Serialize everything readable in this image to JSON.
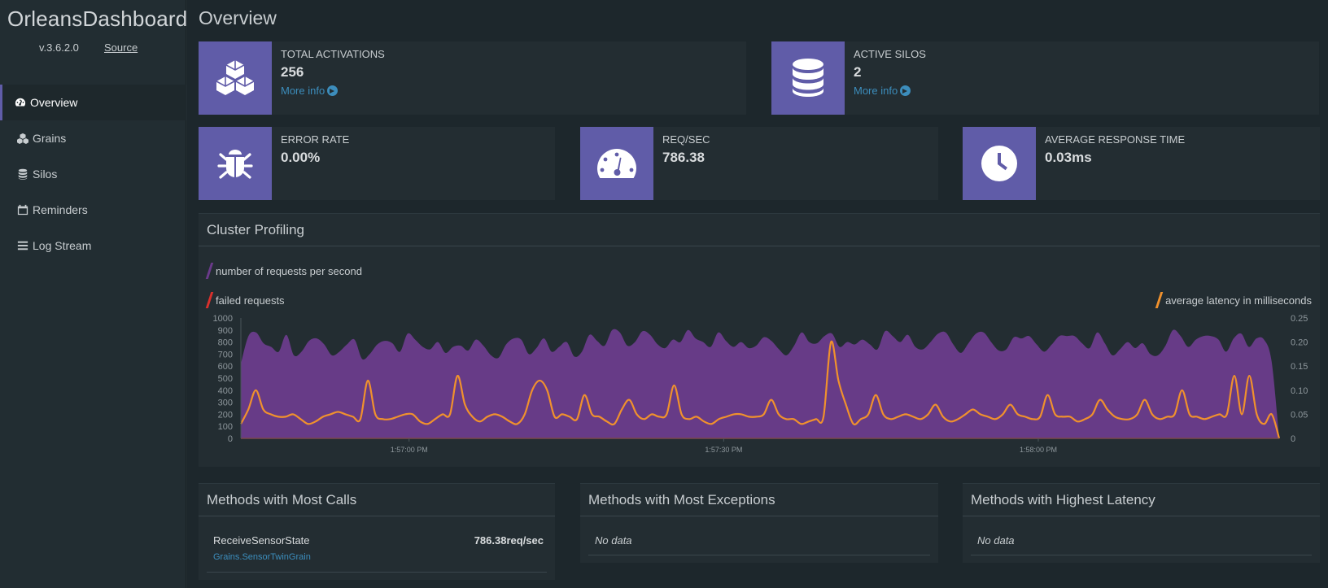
{
  "sidebar": {
    "brand": "OrleansDashboard",
    "version": "v.3.6.2.0",
    "source_link": "Source",
    "items": [
      {
        "label": "Overview",
        "icon": "tachometer-icon",
        "active": true
      },
      {
        "label": "Grains",
        "icon": "cubes-icon",
        "active": false
      },
      {
        "label": "Silos",
        "icon": "database-icon",
        "active": false
      },
      {
        "label": "Reminders",
        "icon": "calendar-icon",
        "active": false
      },
      {
        "label": "Log Stream",
        "icon": "bars-icon",
        "active": false
      }
    ]
  },
  "main": {
    "title": "Overview",
    "stats": {
      "total_activations": {
        "label": "TOTAL ACTIVATIONS",
        "value": "256",
        "more": "More info",
        "icon": "cubes-icon"
      },
      "active_silos": {
        "label": "ACTIVE SILOS",
        "value": "2",
        "more": "More info",
        "icon": "database-icon"
      },
      "error_rate": {
        "label": "ERROR RATE",
        "value": "0.00%",
        "icon": "bug-icon"
      },
      "req_sec": {
        "label": "REQ/SEC",
        "value": "786.38",
        "icon": "tachometer-icon"
      },
      "avg_response": {
        "label": "AVERAGE RESPONSE TIME",
        "value": "0.03ms",
        "icon": "clock-icon"
      }
    },
    "cluster_profiling": {
      "title": "Cluster Profiling",
      "legend_requests": "number of requests per second",
      "legend_failed": "failed requests",
      "legend_latency": "average latency in milliseconds"
    },
    "methods_calls": {
      "title": "Methods with Most Calls",
      "rows": [
        {
          "method": "ReceiveSensorState",
          "grain": "Grains.SensorTwinGrain",
          "value": "786.38req/sec"
        }
      ]
    },
    "methods_exceptions": {
      "title": "Methods with Most Exceptions",
      "empty": "No data"
    },
    "methods_latency": {
      "title": "Methods with Highest Latency",
      "empty": "No data"
    }
  },
  "colors": {
    "accent": "#605ca8",
    "requests": "#6a3a8a",
    "failed": "#d9302c",
    "latency": "#f0912d",
    "link": "#3c8dbc"
  },
  "chart_data": {
    "type": "area",
    "title": "",
    "x_tick_labels": [
      "1:57:00 PM",
      "1:57:30 PM",
      "1:58:00 PM"
    ],
    "ylim": [
      0,
      1000
    ],
    "y_ticks": [
      0,
      100,
      200,
      300,
      400,
      500,
      600,
      700,
      800,
      900,
      1000
    ],
    "y2lim": [
      0,
      0.25
    ],
    "y2_ticks": [
      "0",
      "0.05",
      "0.10",
      "0.15",
      "0.20",
      "0.25"
    ],
    "grid": false,
    "legend_placement": "top-left and top-right",
    "series": [
      {
        "name": "number of requests per second",
        "axis": "left",
        "values": [
          620,
          850,
          880,
          790,
          760,
          720,
          860,
          690,
          720,
          810,
          830,
          780,
          690,
          720,
          780,
          820,
          660,
          700,
          780,
          810,
          790,
          720,
          870,
          820,
          760,
          740,
          800,
          710,
          760,
          770,
          730,
          820,
          770,
          690,
          670,
          780,
          830,
          820,
          700,
          750,
          830,
          720,
          760,
          800,
          680,
          720,
          860,
          810,
          770,
          900,
          880,
          770,
          800,
          890,
          860,
          780,
          750,
          820,
          800,
          900,
          830,
          800,
          760,
          880,
          810,
          760,
          800,
          750,
          770,
          840,
          810,
          740,
          690,
          770,
          880,
          800,
          790,
          850,
          870,
          760,
          800,
          780,
          820,
          780,
          740,
          890,
          850,
          800,
          860,
          760,
          740,
          800,
          870,
          880,
          780,
          710,
          790,
          870,
          880,
          800,
          730,
          740,
          840,
          830,
          850,
          780,
          720,
          780,
          850,
          850,
          850,
          790,
          750,
          880,
          790,
          690,
          740,
          800,
          750,
          790,
          700,
          690,
          770,
          900,
          850,
          760,
          820,
          850,
          850,
          820,
          720,
          830,
          870,
          760,
          830,
          820,
          640,
          0
        ]
      },
      {
        "name": "failed requests",
        "axis": "left",
        "values": [
          0,
          0,
          0,
          0,
          0,
          0,
          0,
          0,
          0,
          0,
          0
        ]
      },
      {
        "name": "average latency in milliseconds",
        "axis": "right",
        "values": [
          0.03,
          0.06,
          0.1,
          0.06,
          0.05,
          0.045,
          0.045,
          0.05,
          0.04,
          0.03,
          0.035,
          0.045,
          0.05,
          0.055,
          0.05,
          0.045,
          0.04,
          0.12,
          0.05,
          0.04,
          0.04,
          0.045,
          0.05,
          0.05,
          0.035,
          0.03,
          0.04,
          0.05,
          0.05,
          0.13,
          0.07,
          0.045,
          0.035,
          0.045,
          0.05,
          0.045,
          0.035,
          0.03,
          0.05,
          0.1,
          0.12,
          0.1,
          0.045,
          0.05,
          0.045,
          0.04,
          0.09,
          0.05,
          0.045,
          0.035,
          0.03,
          0.06,
          0.08,
          0.05,
          0.04,
          0.05,
          0.045,
          0.05,
          0.11,
          0.05,
          0.04,
          0.045,
          0.035,
          0.03,
          0.04,
          0.045,
          0.05,
          0.05,
          0.045,
          0.045,
          0.05,
          0.08,
          0.05,
          0.04,
          0.04,
          0.03,
          0.035,
          0.04,
          0.045,
          0.2,
          0.12,
          0.07,
          0.03,
          0.04,
          0.05,
          0.09,
          0.05,
          0.04,
          0.045,
          0.05,
          0.045,
          0.04,
          0.05,
          0.07,
          0.045,
          0.035,
          0.04,
          0.05,
          0.06,
          0.05,
          0.045,
          0.04,
          0.05,
          0.07,
          0.05,
          0.045,
          0.04,
          0.045,
          0.09,
          0.05,
          0.045,
          0.045,
          0.035,
          0.04,
          0.05,
          0.08,
          0.06,
          0.045,
          0.04,
          0.04,
          0.05,
          0.08,
          0.05,
          0.04,
          0.045,
          0.05,
          0.1,
          0.05,
          0.045,
          0.04,
          0.045,
          0.05,
          0.05,
          0.13,
          0.05,
          0.13,
          0.05,
          0.03,
          0.05,
          0
        ]
      }
    ]
  }
}
